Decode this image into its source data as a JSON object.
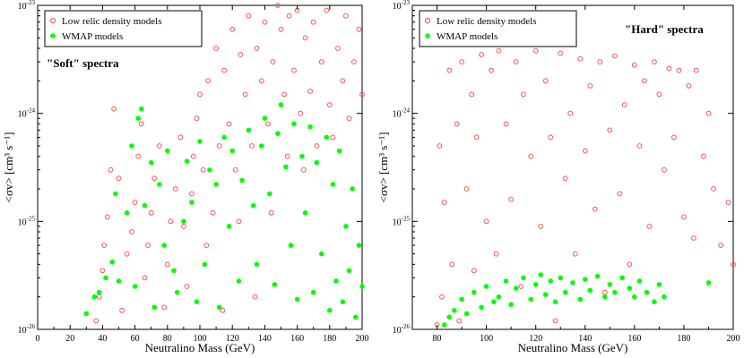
{
  "chart_data": [
    {
      "type": "scatter",
      "annotation": "\"Soft\" spectra",
      "xlabel": "Neutralino Mass (GeV)",
      "ylabel": "<σv> [cm³ s⁻¹]",
      "xlim": [
        0,
        200
      ],
      "ylim": [
        1e-26,
        1e-23
      ],
      "yscale": "log",
      "x_ticks": [
        0,
        20,
        40,
        60,
        80,
        100,
        120,
        140,
        160,
        180,
        200
      ],
      "y_ticks": [
        {
          "value": 1e-26,
          "label": "10-26"
        },
        {
          "value": 1e-25,
          "label": "10-25"
        },
        {
          "value": 1e-24,
          "label": "10-24"
        },
        {
          "value": 1e-23,
          "label": "10-23"
        }
      ],
      "legend": {
        "position": "top-left",
        "entries": [
          "Low relic density models",
          "WMAP models"
        ]
      },
      "series": [
        {
          "name": "Low relic density models",
          "marker": "open-circle",
          "color": "#ff5050",
          "points": [
            [
              36,
              1.2e-26
            ],
            [
              38,
              2e-26
            ],
            [
              40,
              3.5e-26
            ],
            [
              41,
              6e-26
            ],
            [
              43,
              1.1e-25
            ],
            [
              45,
              3e-25
            ],
            [
              47,
              1.1e-24
            ],
            [
              50,
              2.5e-25
            ],
            [
              52,
              1.5e-26
            ],
            [
              55,
              5e-26
            ],
            [
              58,
              8e-26
            ],
            [
              60,
              1.5e-25
            ],
            [
              62,
              4e-25
            ],
            [
              64,
              8e-25
            ],
            [
              66,
              3e-26
            ],
            [
              68,
              6e-26
            ],
            [
              70,
              1.2e-25
            ],
            [
              72,
              2.5e-25
            ],
            [
              75,
              5e-25
            ],
            [
              78,
              1.6e-26
            ],
            [
              80,
              4e-26
            ],
            [
              82,
              1e-25
            ],
            [
              85,
              2e-25
            ],
            [
              88,
              6e-25
            ],
            [
              90,
              9e-26
            ],
            [
              92,
              2.5e-26
            ],
            [
              95,
              1.8e-25
            ],
            [
              96,
              4e-25
            ],
            [
              98,
              9e-25
            ],
            [
              100,
              1.5e-24
            ],
            [
              102,
              3e-25
            ],
            [
              104,
              6e-26
            ],
            [
              105,
              2e-24
            ],
            [
              108,
              1.2e-25
            ],
            [
              110,
              4e-24
            ],
            [
              112,
              5e-25
            ],
            [
              114,
              1.5e-26
            ],
            [
              115,
              2.5e-24
            ],
            [
              118,
              8e-25
            ],
            [
              120,
              6e-24
            ],
            [
              122,
              3e-25
            ],
            [
              124,
              1e-25
            ],
            [
              125,
              3.5e-24
            ],
            [
              128,
              1.5e-24
            ],
            [
              130,
              8e-24
            ],
            [
              132,
              5e-25
            ],
            [
              134,
              2e-26
            ],
            [
              135,
              4e-24
            ],
            [
              138,
              2e-24
            ],
            [
              140,
              7e-24
            ],
            [
              142,
              8e-25
            ],
            [
              144,
              1.2e-25
            ],
            [
              145,
              3e-24
            ],
            [
              148,
              1e-23
            ],
            [
              150,
              6e-24
            ],
            [
              152,
              1.5e-24
            ],
            [
              154,
              4e-25
            ],
            [
              155,
              8e-24
            ],
            [
              158,
              2.5e-24
            ],
            [
              160,
              9e-24
            ],
            [
              162,
              1e-24
            ],
            [
              164,
              3e-25
            ],
            [
              165,
              5e-24
            ],
            [
              168,
              1.6e-24
            ],
            [
              170,
              7e-24
            ],
            [
              172,
              5e-25
            ],
            [
              175,
              3e-24
            ],
            [
              178,
              9e-24
            ],
            [
              180,
              1.2e-24
            ],
            [
              182,
              6e-25
            ],
            [
              185,
              4e-24
            ],
            [
              188,
              2e-24
            ],
            [
              190,
              8e-24
            ],
            [
              192,
              9e-25
            ],
            [
              195,
              3e-24
            ],
            [
              198,
              6e-24
            ],
            [
              200,
              1.5e-24
            ]
          ]
        },
        {
          "name": "WMAP models",
          "marker": "filled-circle",
          "color": "#00ff00",
          "points": [
            [
              30,
              1.4e-26
            ],
            [
              35,
              2e-26
            ],
            [
              38,
              2.2e-26
            ],
            [
              42,
              3e-26
            ],
            [
              46,
              4.2e-26
            ],
            [
              48,
              1.8e-25
            ],
            [
              50,
              2.8e-26
            ],
            [
              55,
              1.2e-25
            ],
            [
              58,
              5e-25
            ],
            [
              60,
              2.5e-26
            ],
            [
              62,
              9e-25
            ],
            [
              64,
              1.1e-24
            ],
            [
              66,
              1.4e-25
            ],
            [
              70,
              3.5e-25
            ],
            [
              72,
              1.6e-26
            ],
            [
              75,
              2.2e-25
            ],
            [
              78,
              6e-26
            ],
            [
              80,
              4.5e-25
            ],
            [
              84,
              3.5e-26
            ],
            [
              86,
              2.2e-26
            ],
            [
              90,
              1e-25
            ],
            [
              92,
              3.6e-25
            ],
            [
              95,
              1.5e-25
            ],
            [
              98,
              1.8e-26
            ],
            [
              100,
              5.5e-25
            ],
            [
              103,
              4e-26
            ],
            [
              106,
              3e-25
            ],
            [
              110,
              2.2e-25
            ],
            [
              112,
              1.6e-26
            ],
            [
              115,
              6e-25
            ],
            [
              118,
              9e-26
            ],
            [
              120,
              4.5e-25
            ],
            [
              124,
              2.8e-26
            ],
            [
              126,
              2.4e-25
            ],
            [
              130,
              7e-25
            ],
            [
              133,
              1.4e-25
            ],
            [
              135,
              4e-26
            ],
            [
              138,
              5e-25
            ],
            [
              140,
              9e-25
            ],
            [
              143,
              1.8e-25
            ],
            [
              146,
              2.6e-26
            ],
            [
              148,
              6.5e-25
            ],
            [
              150,
              1.2e-24
            ],
            [
              153,
              3.2e-25
            ],
            [
              156,
              6e-26
            ],
            [
              158,
              8e-25
            ],
            [
              160,
              1.9e-26
            ],
            [
              163,
              4e-25
            ],
            [
              165,
              1.2e-25
            ],
            [
              168,
              7.5e-25
            ],
            [
              170,
              2.2e-26
            ],
            [
              172,
              3.5e-25
            ],
            [
              175,
              5e-26
            ],
            [
              178,
              6e-25
            ],
            [
              180,
              1.5e-26
            ],
            [
              182,
              2.2e-25
            ],
            [
              184,
              2.8e-26
            ],
            [
              186,
              4.5e-25
            ],
            [
              188,
              1.8e-26
            ],
            [
              190,
              9e-26
            ],
            [
              192,
              3.5e-26
            ],
            [
              194,
              2e-25
            ],
            [
              196,
              1.3e-26
            ],
            [
              198,
              6e-26
            ],
            [
              200,
              2.5e-26
            ]
          ]
        }
      ]
    },
    {
      "type": "scatter",
      "annotation": "\"Hard\" spectra",
      "xlabel": "Neutralino Mass (GeV)",
      "ylabel": "<σv> [cm³ s⁻¹]",
      "xlim": [
        70,
        200
      ],
      "ylim": [
        1e-26,
        1e-23
      ],
      "yscale": "log",
      "x_ticks": [
        80,
        100,
        120,
        140,
        160,
        180,
        200
      ],
      "y_ticks": [
        {
          "value": 1e-26,
          "label": "10-26"
        },
        {
          "value": 1e-25,
          "label": "10-25"
        },
        {
          "value": 1e-24,
          "label": "10-24"
        },
        {
          "value": 1e-23,
          "label": "10-23"
        }
      ],
      "legend": {
        "position": "top-left",
        "entries": [
          "Low relic density models",
          "WMAP models"
        ]
      },
      "series": [
        {
          "name": "Low relic density models",
          "marker": "open-circle",
          "color": "#ff5050",
          "points": [
            [
              80,
              1.1e-26
            ],
            [
              81,
              5e-25
            ],
            [
              82,
              2e-26
            ],
            [
              83,
              1.5e-25
            ],
            [
              85,
              2.5e-24
            ],
            [
              86,
              4e-26
            ],
            [
              88,
              8e-25
            ],
            [
              89,
              1.2e-26
            ],
            [
              90,
              3e-24
            ],
            [
              92,
              2e-25
            ],
            [
              94,
              1.5e-24
            ],
            [
              95,
              3.5e-26
            ],
            [
              96,
              6e-25
            ],
            [
              98,
              3.5e-24
            ],
            [
              100,
              1e-25
            ],
            [
              102,
              2.5e-24
            ],
            [
              104,
              5e-26
            ],
            [
              105,
              3.8e-24
            ],
            [
              108,
              8e-25
            ],
            [
              110,
              1.6e-25
            ],
            [
              112,
              3e-24
            ],
            [
              114,
              2.5e-26
            ],
            [
              115,
              1.5e-24
            ],
            [
              118,
              4e-25
            ],
            [
              120,
              3.8e-24
            ],
            [
              122,
              9e-26
            ],
            [
              124,
              2e-24
            ],
            [
              126,
              6e-25
            ],
            [
              128,
              1.2e-26
            ],
            [
              130,
              3.6e-24
            ],
            [
              132,
              2.5e-25
            ],
            [
              134,
              1e-24
            ],
            [
              136,
              5e-26
            ],
            [
              138,
              3.2e-24
            ],
            [
              140,
              4.5e-25
            ],
            [
              142,
              1.8e-24
            ],
            [
              144,
              1.3e-25
            ],
            [
              146,
              3e-24
            ],
            [
              148,
              2.2e-26
            ],
            [
              150,
              7e-25
            ],
            [
              152,
              3.4e-24
            ],
            [
              154,
              1.8e-25
            ],
            [
              156,
              1.2e-24
            ],
            [
              158,
              4e-26
            ],
            [
              160,
              2.8e-24
            ],
            [
              162,
              5e-25
            ],
            [
              164,
              2e-24
            ],
            [
              166,
              9e-26
            ],
            [
              168,
              3e-24
            ],
            [
              170,
              1.5e-24
            ],
            [
              172,
              3e-25
            ],
            [
              174,
              2.6e-24
            ],
            [
              176,
              6e-25
            ],
            [
              178,
              2.5e-24
            ],
            [
              180,
              1.1e-25
            ],
            [
              182,
              1.8e-24
            ],
            [
              184,
              7e-26
            ],
            [
              185,
              2.5e-24
            ],
            [
              188,
              4e-25
            ],
            [
              190,
              1e-24
            ],
            [
              192,
              2e-25
            ],
            [
              195,
              6e-26
            ],
            [
              198,
              1.5e-25
            ],
            [
              200,
              4e-26
            ]
          ]
        },
        {
          "name": "WMAP models",
          "marker": "filled-circle",
          "color": "#00ff00",
          "points": [
            [
              83,
              1.1e-26
            ],
            [
              85,
              1.3e-26
            ],
            [
              87,
              1.5e-26
            ],
            [
              90,
              1.9e-26
            ],
            [
              92,
              1.4e-26
            ],
            [
              95,
              2.2e-26
            ],
            [
              98,
              1.6e-26
            ],
            [
              100,
              2.5e-26
            ],
            [
              103,
              1.8e-26
            ],
            [
              105,
              2e-26
            ],
            [
              108,
              2.8e-26
            ],
            [
              110,
              1.7e-26
            ],
            [
              112,
              2.4e-26
            ],
            [
              115,
              3e-26
            ],
            [
              118,
              1.9e-26
            ],
            [
              120,
              2.6e-26
            ],
            [
              122,
              3.2e-26
            ],
            [
              124,
              2.1e-26
            ],
            [
              126,
              2.8e-26
            ],
            [
              128,
              1.8e-26
            ],
            [
              130,
              3e-26
            ],
            [
              132,
              2.2e-26
            ],
            [
              135,
              2.7e-26
            ],
            [
              138,
              1.9e-26
            ],
            [
              140,
              2.9e-26
            ],
            [
              142,
              2.3e-26
            ],
            [
              145,
              3.1e-26
            ],
            [
              148,
              2e-26
            ],
            [
              150,
              2.6e-26
            ],
            [
              152,
              2.2e-26
            ],
            [
              155,
              3e-26
            ],
            [
              158,
              2.4e-26
            ],
            [
              160,
              2e-26
            ],
            [
              162,
              2.8e-26
            ],
            [
              165,
              2.2e-26
            ],
            [
              168,
              1.8e-26
            ],
            [
              170,
              2.6e-26
            ],
            [
              172,
              2e-26
            ],
            [
              190,
              2.7e-26
            ]
          ]
        }
      ]
    }
  ]
}
